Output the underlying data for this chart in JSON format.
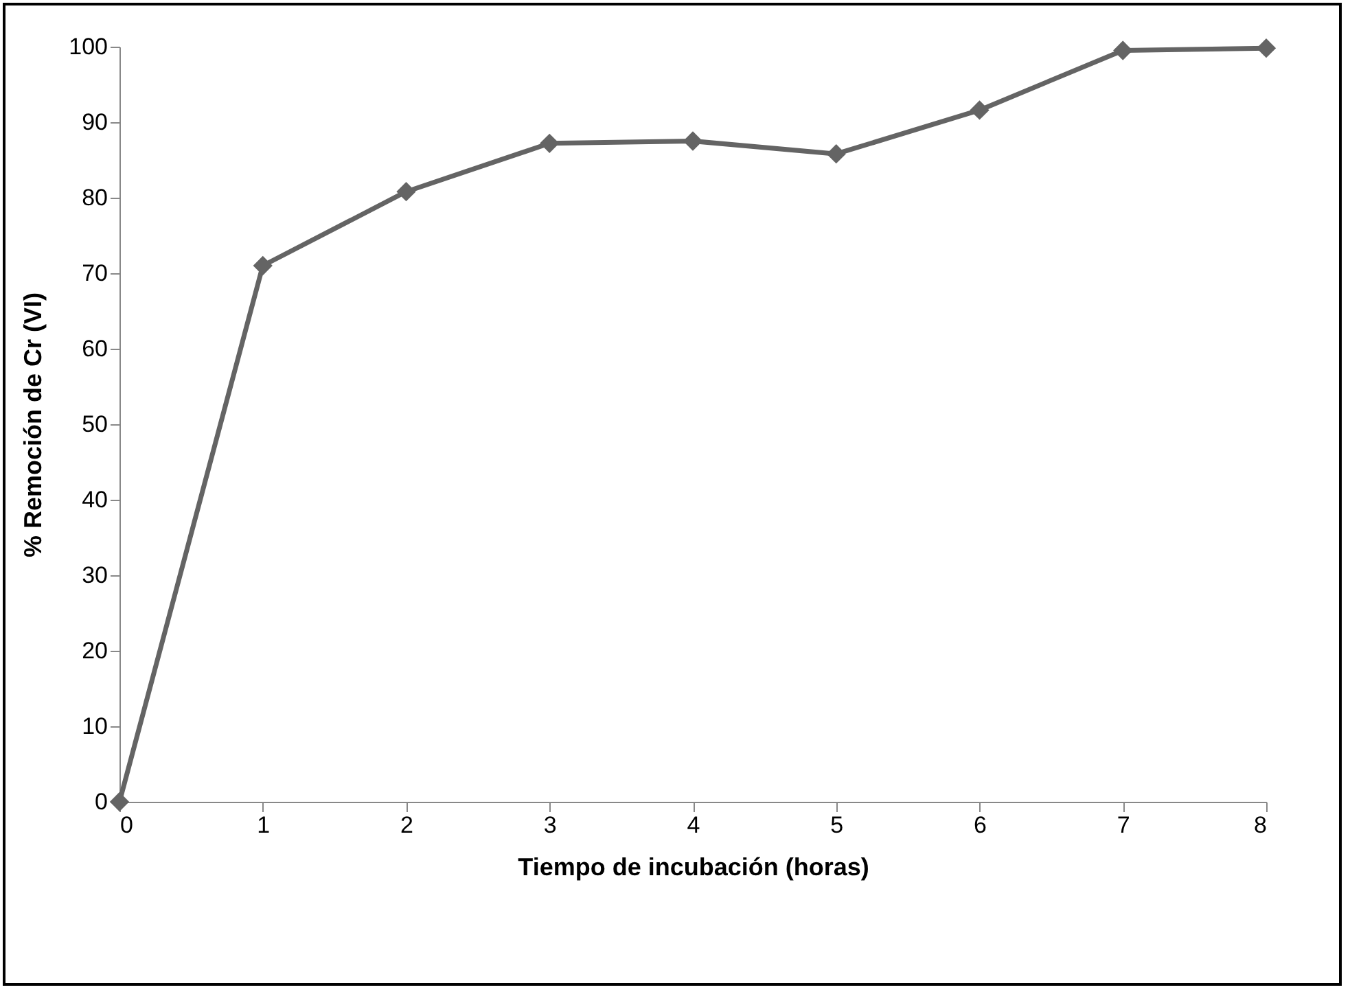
{
  "chart_data": {
    "type": "line",
    "xlabel": "Tiempo de incubación (horas)",
    "ylabel": "% Remoción de Cr (VI)",
    "x": [
      0,
      1,
      2,
      3,
      4,
      5,
      6,
      7,
      8
    ],
    "series": [
      {
        "color": "#646464",
        "values": [
          0,
          71,
          80.8,
          87.2,
          87.5,
          85.8,
          91.6,
          99.5,
          99.8
        ]
      }
    ],
    "xlim": [
      0,
      8
    ],
    "xticks": [
      0,
      1,
      2,
      3,
      4,
      5,
      6,
      7,
      8
    ],
    "ylim": [
      0,
      100
    ],
    "yticks": [
      0,
      10,
      20,
      30,
      40,
      50,
      60,
      70,
      80,
      90,
      100
    ],
    "grid": false,
    "legend": false,
    "marker": "diamond",
    "line_style": "solid"
  }
}
